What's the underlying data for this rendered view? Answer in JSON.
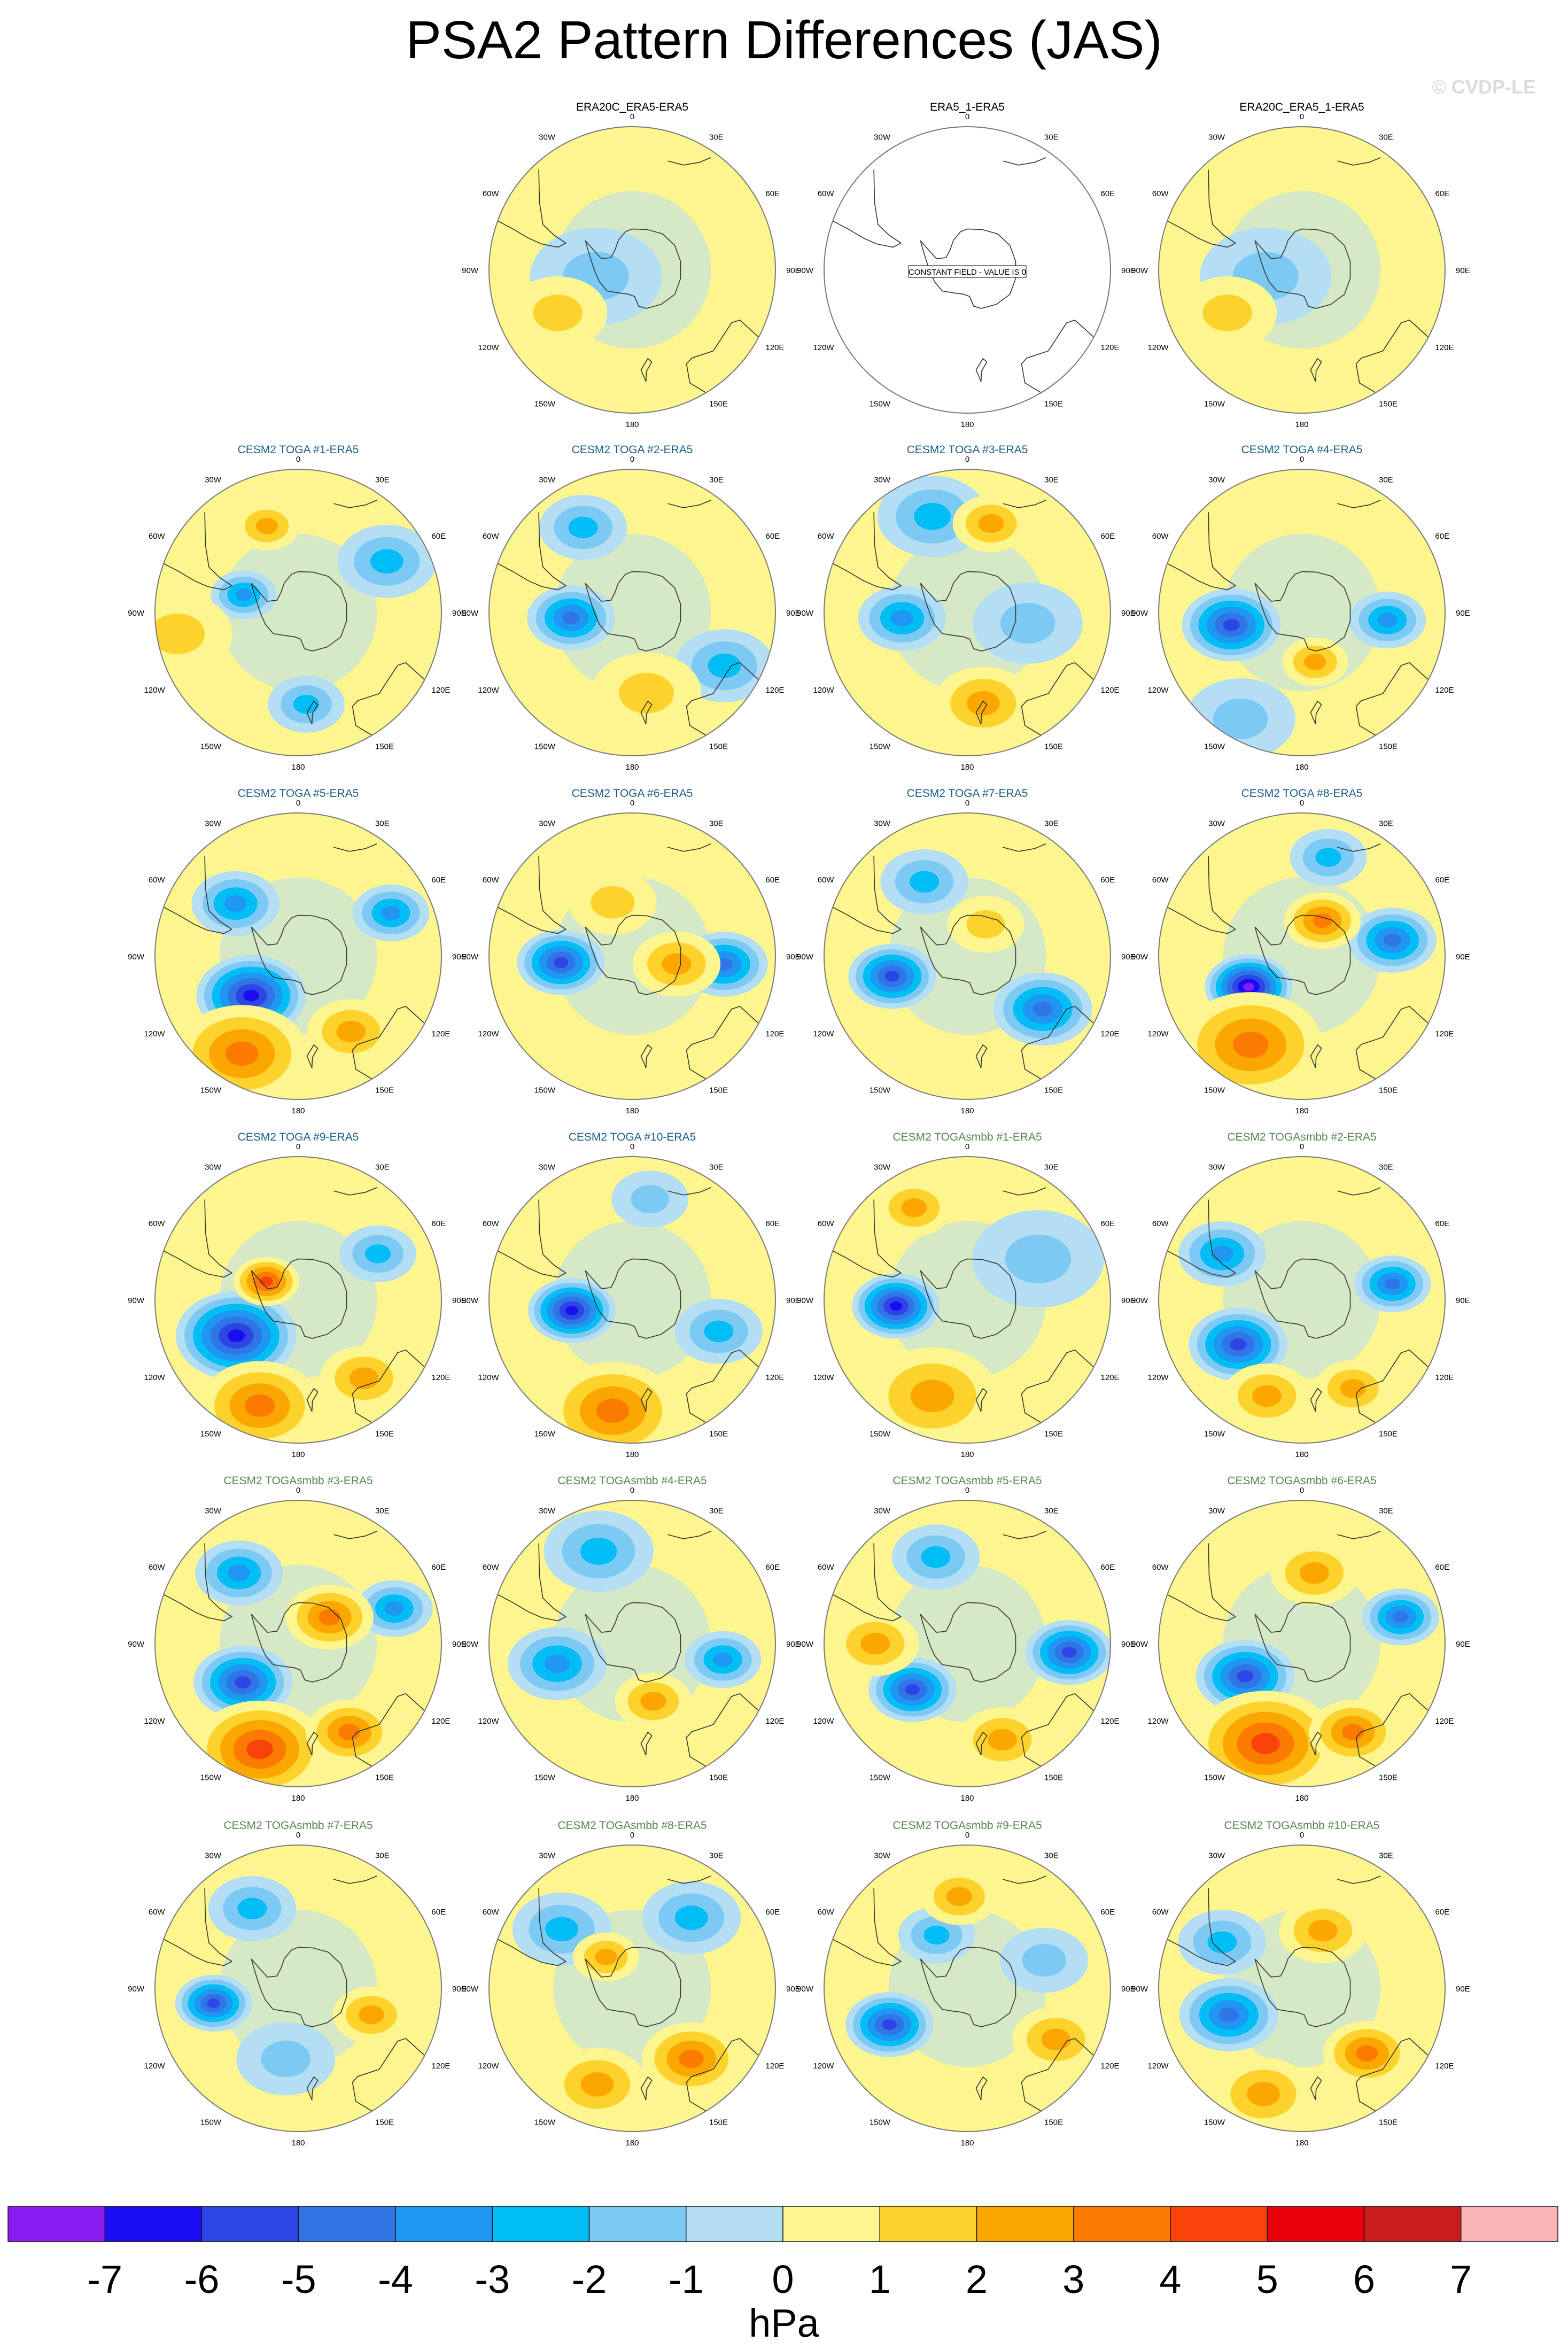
{
  "title": "PSA2 Pattern Differences (JAS)",
  "copyright": "© CVDP-LE",
  "constant_field_text": "CONSTANT FIELD - VALUE IS 0",
  "longitude_labels": [
    "0",
    "30E",
    "60E",
    "90E",
    "120E",
    "150E",
    "180",
    "150W",
    "120W",
    "90W",
    "60W",
    "30W"
  ],
  "colorbar": {
    "label": "hPa",
    "ticks": [
      "-7",
      "-6",
      "-5",
      "-4",
      "-3",
      "-2",
      "-1",
      "0",
      "1",
      "2",
      "3",
      "4",
      "5",
      "6",
      "7"
    ],
    "colors": [
      "#8a1cf2",
      "#1a0df2",
      "#2e45e6",
      "#3174e6",
      "#1e96f2",
      "#00bef5",
      "#7ccaf4",
      "#b4def4",
      "#fdf58e",
      "#fdd22c",
      "#fca600",
      "#fb7a00",
      "#f9420a",
      "#e8000b",
      "#c91c1c",
      "#fbb4b6"
    ]
  },
  "panels": [
    {
      "title": "",
      "blank": true
    },
    {
      "title": "ERA20C_ERA5-ERA5",
      "color": "#000000",
      "constant": false,
      "anoms": [
        {
          "lat": -72,
          "lon": -100,
          "val": -0.5,
          "r": 12
        },
        {
          "lat": -48,
          "lon": -120,
          "val": 0.5,
          "r": 9
        }
      ]
    },
    {
      "title": "ERA5_1-ERA5",
      "color": "#000000",
      "constant": true,
      "anoms": []
    },
    {
      "title": "ERA20C_ERA5_1-ERA5",
      "color": "#000000",
      "constant": false,
      "anoms": [
        {
          "lat": -72,
          "lon": -100,
          "val": -0.5,
          "r": 12
        },
        {
          "lat": -48,
          "lon": -120,
          "val": 0.5,
          "r": 9
        }
      ]
    },
    {
      "title": "CESM2 TOGA #1-ERA5",
      "color": "#1a5d8a",
      "anoms": [
        {
          "lat": -62,
          "lon": -72,
          "val": -3,
          "r": 6
        },
        {
          "lat": -45,
          "lon": 175,
          "val": -1.5,
          "r": 7
        },
        {
          "lat": -40,
          "lon": 60,
          "val": -1.5,
          "r": 9
        },
        {
          "lat": -45,
          "lon": -20,
          "val": 1.5,
          "r": 6
        },
        {
          "lat": -30,
          "lon": -100,
          "val": 0.5,
          "r": 10
        }
      ]
    },
    {
      "title": "CESM2 TOGA #2-ERA5",
      "color": "#1a5d8a",
      "anoms": [
        {
          "lat": -60,
          "lon": -95,
          "val": -3.5,
          "r": 8
        },
        {
          "lat": -38,
          "lon": 120,
          "val": -1.5,
          "r": 9
        },
        {
          "lat": -42,
          "lon": -30,
          "val": -1.5,
          "r": 8
        },
        {
          "lat": -50,
          "lon": 170,
          "val": 0.5,
          "r": 10
        }
      ]
    },
    {
      "title": "CESM2 TOGA #3-ERA5",
      "color": "#1a5d8a",
      "anoms": [
        {
          "lat": -58,
          "lon": -95,
          "val": -2.5,
          "r": 8
        },
        {
          "lat": -40,
          "lon": -20,
          "val": -1.5,
          "r": 10
        },
        {
          "lat": -45,
          "lon": 170,
          "val": 2,
          "r": 9
        },
        {
          "lat": -45,
          "lon": 15,
          "val": 2,
          "r": 7
        },
        {
          "lat": -60,
          "lon": 100,
          "val": -1,
          "r": 10
        }
      ]
    },
    {
      "title": "CESM2 TOGA #4-ERA5",
      "color": "#1a5d8a",
      "anoms": [
        {
          "lat": -55,
          "lon": -100,
          "val": -4.5,
          "r": 9
        },
        {
          "lat": -48,
          "lon": 95,
          "val": -3,
          "r": 7
        },
        {
          "lat": -65,
          "lon": 165,
          "val": 2,
          "r": 6
        },
        {
          "lat": -30,
          "lon": -150,
          "val": -1,
          "r": 10
        }
      ]
    },
    {
      "title": "CESM2 TOGA #5-ERA5",
      "color": "#1a5d8a",
      "anoms": [
        {
          "lat": -60,
          "lon": -130,
          "val": -5.5,
          "r": 10
        },
        {
          "lat": -50,
          "lon": -50,
          "val": -3,
          "r": 8
        },
        {
          "lat": -40,
          "lon": 65,
          "val": -3,
          "r": 7
        },
        {
          "lat": -35,
          "lon": -150,
          "val": 2.5,
          "r": 12
        },
        {
          "lat": -45,
          "lon": 145,
          "val": 2,
          "r": 8
        }
      ]
    },
    {
      "title": "CESM2 TOGA #6-ERA5",
      "color": "#1a5d8a",
      "anoms": [
        {
          "lat": -55,
          "lon": -95,
          "val": -4.5,
          "r": 8
        },
        {
          "lat": -45,
          "lon": 95,
          "val": -3.5,
          "r": 8
        },
        {
          "lat": -68,
          "lon": 100,
          "val": 2,
          "r": 8
        },
        {
          "lat": -62,
          "lon": -20,
          "val": 1,
          "r": 8
        }
      ]
    },
    {
      "title": "CESM2 TOGA #7-ERA5",
      "color": "#1a5d8a",
      "anoms": [
        {
          "lat": -52,
          "lon": -105,
          "val": -4.5,
          "r": 8
        },
        {
          "lat": -45,
          "lon": 125,
          "val": -4,
          "r": 9
        },
        {
          "lat": -48,
          "lon": -30,
          "val": -1.5,
          "r": 8
        },
        {
          "lat": -72,
          "lon": 30,
          "val": 1,
          "r": 7
        }
      ]
    },
    {
      "title": "CESM2 TOGA #8-ERA5",
      "color": "#1a5d8a",
      "anoms": [
        {
          "lat": -60,
          "lon": -120,
          "val": -6.5,
          "r": 8
        },
        {
          "lat": -45,
          "lon": 80,
          "val": -3.5,
          "r": 8
        },
        {
          "lat": -40,
          "lon": -150,
          "val": 3,
          "r": 13
        },
        {
          "lat": -70,
          "lon": 30,
          "val": 2.5,
          "r": 7
        },
        {
          "lat": -40,
          "lon": 15,
          "val": -1.5,
          "r": 7
        }
      ]
    },
    {
      "title": "CESM2 TOGA #9-ERA5",
      "color": "#1a5d8a",
      "anoms": [
        {
          "lat": -55,
          "lon": -120,
          "val": -5.5,
          "r": 11
        },
        {
          "lat": -72,
          "lon": -60,
          "val": 3.5,
          "r": 6
        },
        {
          "lat": -35,
          "lon": -160,
          "val": 2.5,
          "r": 11
        },
        {
          "lat": -40,
          "lon": 140,
          "val": 2,
          "r": 8
        },
        {
          "lat": -45,
          "lon": 60,
          "val": -1.5,
          "r": 7
        }
      ]
    },
    {
      "title": "CESM2 TOGA #10-ERA5",
      "color": "#1a5d8a",
      "anoms": [
        {
          "lat": -60,
          "lon": -100,
          "val": -5.5,
          "r": 8
        },
        {
          "lat": -35,
          "lon": -170,
          "val": 3,
          "r": 12
        },
        {
          "lat": -45,
          "lon": 110,
          "val": -1.5,
          "r": 8
        },
        {
          "lat": -40,
          "lon": 10,
          "val": -1,
          "r": 7
        }
      ]
    },
    {
      "title": "CESM2 TOGAsmbb #1-ERA5",
      "color": "#55874f",
      "anoms": [
        {
          "lat": -55,
          "lon": -95,
          "val": -5.5,
          "r": 8
        },
        {
          "lat": -40,
          "lon": -160,
          "val": 2,
          "r": 12
        },
        {
          "lat": -38,
          "lon": -30,
          "val": 2,
          "r": 7
        },
        {
          "lat": -50,
          "lon": 60,
          "val": -1,
          "r": 12
        }
      ]
    },
    {
      "title": "CESM2 TOGAsmbb #2-ERA5",
      "color": "#55874f",
      "anoms": [
        {
          "lat": -52,
          "lon": -125,
          "val": -5,
          "r": 9
        },
        {
          "lat": -45,
          "lon": 80,
          "val": -3.5,
          "r": 7
        },
        {
          "lat": -45,
          "lon": -60,
          "val": -2.5,
          "r": 8
        },
        {
          "lat": -40,
          "lon": -160,
          "val": 2,
          "r": 8
        },
        {
          "lat": -40,
          "lon": 150,
          "val": 2,
          "r": 7
        }
      ]
    },
    {
      "title": "CESM2 TOGAsmbb #3-ERA5",
      "color": "#55874f",
      "anoms": [
        {
          "lat": -57,
          "lon": -125,
          "val": -5,
          "r": 9
        },
        {
          "lat": -45,
          "lon": -40,
          "val": -3,
          "r": 8
        },
        {
          "lat": -40,
          "lon": 70,
          "val": -3,
          "r": 7
        },
        {
          "lat": -70,
          "lon": 50,
          "val": 3,
          "r": 8
        },
        {
          "lat": -35,
          "lon": -160,
          "val": 3.5,
          "r": 12
        },
        {
          "lat": -40,
          "lon": 150,
          "val": 3,
          "r": 8
        }
      ]
    },
    {
      "title": "CESM2 TOGAsmbb #4-ERA5",
      "color": "#55874f",
      "anoms": [
        {
          "lat": -52,
          "lon": -105,
          "val": -3,
          "r": 9
        },
        {
          "lat": -45,
          "lon": 100,
          "val": -3,
          "r": 7
        },
        {
          "lat": -60,
          "lon": 160,
          "val": 2,
          "r": 7
        },
        {
          "lat": -42,
          "lon": -20,
          "val": -1.5,
          "r": 10
        }
      ]
    },
    {
      "title": "CESM2 TOGAsmbb #5-ERA5",
      "color": "#55874f",
      "anoms": [
        {
          "lat": -55,
          "lon": -130,
          "val": -4.5,
          "r": 8
        },
        {
          "lat": -40,
          "lon": 95,
          "val": -5,
          "r": 8
        },
        {
          "lat": -45,
          "lon": -90,
          "val": 2,
          "r": 8
        },
        {
          "lat": -40,
          "lon": 160,
          "val": 2,
          "r": 8
        },
        {
          "lat": -45,
          "lon": -20,
          "val": -1.5,
          "r": 8
        }
      ]
    },
    {
      "title": "CESM2 TOGAsmbb #6-ERA5",
      "color": "#55874f",
      "anoms": [
        {
          "lat": -58,
          "lon": -120,
          "val": -4.5,
          "r": 9
        },
        {
          "lat": -40,
          "lon": 75,
          "val": -3.5,
          "r": 7
        },
        {
          "lat": -38,
          "lon": -160,
          "val": 3.5,
          "r": 13
        },
        {
          "lat": -55,
          "lon": 10,
          "val": 2,
          "r": 8
        },
        {
          "lat": -40,
          "lon": 150,
          "val": 2.5,
          "r": 8
        }
      ]
    },
    {
      "title": "CESM2 TOGAsmbb #7-ERA5",
      "color": "#55874f",
      "anoms": [
        {
          "lat": -48,
          "lon": -100,
          "val": -4.5,
          "r": 7
        },
        {
          "lat": -52,
          "lon": 110,
          "val": 2,
          "r": 7
        },
        {
          "lat": -45,
          "lon": -30,
          "val": -1.5,
          "r": 8
        },
        {
          "lat": -55,
          "lon": -170,
          "val": -1,
          "r": 9
        }
      ]
    },
    {
      "title": "CESM2 TOGAsmbb #8-ERA5",
      "color": "#55874f",
      "anoms": [
        {
          "lat": -45,
          "lon": 140,
          "val": 3,
          "r": 9
        },
        {
          "lat": -45,
          "lon": -50,
          "val": -2,
          "r": 9
        },
        {
          "lat": -70,
          "lon": -40,
          "val": 2,
          "r": 6
        },
        {
          "lat": -40,
          "lon": -160,
          "val": 2,
          "r": 9
        },
        {
          "lat": -45,
          "lon": 40,
          "val": -1.5,
          "r": 9
        }
      ]
    },
    {
      "title": "CESM2 TOGAsmbb #9-ERA5",
      "color": "#55874f",
      "anoms": [
        {
          "lat": -48,
          "lon": -115,
          "val": -4.5,
          "r": 8
        },
        {
          "lat": -60,
          "lon": -30,
          "val": -2,
          "r": 7
        },
        {
          "lat": -40,
          "lon": 120,
          "val": 2,
          "r": 8
        },
        {
          "lat": -45,
          "lon": -5,
          "val": 2,
          "r": 7
        },
        {
          "lat": -50,
          "lon": 70,
          "val": -1,
          "r": 8
        }
      ]
    },
    {
      "title": "CESM2 TOGAsmbb #10-ERA5",
      "color": "#55874f",
      "anoms": [
        {
          "lat": -52,
          "lon": -110,
          "val": -4,
          "r": 9
        },
        {
          "lat": -45,
          "lon": 135,
          "val": 3,
          "r": 8
        },
        {
          "lat": -60,
          "lon": 20,
          "val": 2,
          "r": 8
        },
        {
          "lat": -35,
          "lon": -160,
          "val": 2,
          "r": 9
        },
        {
          "lat": -45,
          "lon": -60,
          "val": -1.5,
          "r": 8
        }
      ]
    }
  ],
  "chart_data": {
    "type": "heatmap",
    "title": "PSA2 Pattern Differences (JAS)",
    "colorbar_label": "hPa",
    "colorbar_levels": [
      -7,
      -6,
      -5,
      -4,
      -3,
      -2,
      -1,
      0,
      1,
      2,
      3,
      4,
      5,
      6,
      7
    ],
    "projection": "south-polar stereographic, 0 at top",
    "panel_titles": [
      "ERA20C_ERA5-ERA5",
      "ERA5_1-ERA5",
      "ERA20C_ERA5_1-ERA5",
      "CESM2 TOGA #1-ERA5",
      "CESM2 TOGA #2-ERA5",
      "CESM2 TOGA #3-ERA5",
      "CESM2 TOGA #4-ERA5",
      "CESM2 TOGA #5-ERA5",
      "CESM2 TOGA #6-ERA5",
      "CESM2 TOGA #7-ERA5",
      "CESM2 TOGA #8-ERA5",
      "CESM2 TOGA #9-ERA5",
      "CESM2 TOGA #10-ERA5",
      "CESM2 TOGAsmbb #1-ERA5",
      "CESM2 TOGAsmbb #2-ERA5",
      "CESM2 TOGAsmbb #3-ERA5",
      "CESM2 TOGAsmbb #4-ERA5",
      "CESM2 TOGAsmbb #5-ERA5",
      "CESM2 TOGAsmbb #6-ERA5",
      "CESM2 TOGAsmbb #7-ERA5",
      "CESM2 TOGAsmbb #8-ERA5",
      "CESM2 TOGAsmbb #9-ERA5",
      "CESM2 TOGAsmbb #10-ERA5"
    ]
  }
}
